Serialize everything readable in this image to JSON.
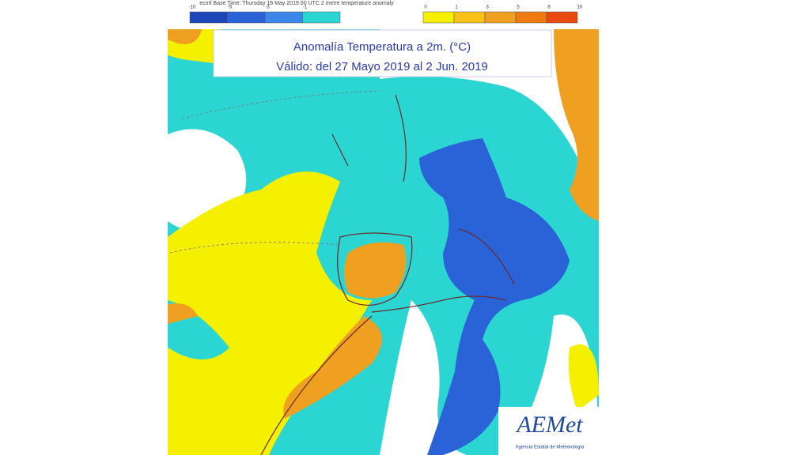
{
  "header": {
    "run_info": "ecmf Base Time: Thursday 16 May 2019 00 UTC 2 metre temperature anomaly"
  },
  "title": {
    "line1": "Anomalía Temperatura a 2m. (°C)",
    "line2": "Válido: del 27 Mayo 2019 al 2 Jun. 2019"
  },
  "legend": {
    "negative": {
      "labels": [
        "-10",
        "-5",
        "-3",
        "-1"
      ],
      "colors": [
        "#1d47b8",
        "#2a62d8",
        "#3c86ea",
        "#2bd6d2"
      ]
    },
    "positive": {
      "labels": [
        "0",
        "1",
        "3",
        "5",
        "8",
        "10"
      ],
      "colors": [
        "#f5ef00",
        "#f7c21a",
        "#f0a020",
        "#f07a12",
        "#e84a10"
      ]
    }
  },
  "logo": {
    "name": "AEMet",
    "subtitle": "Agencia Estatal de Meteorología"
  }
}
